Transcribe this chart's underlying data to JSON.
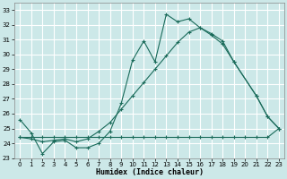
{
  "xlabel": "Humidex (Indice chaleur)",
  "bg_color": "#cce8e8",
  "grid_color": "#ffffff",
  "line_color": "#1a6b5a",
  "xlim": [
    -0.5,
    23.5
  ],
  "ylim": [
    23,
    33.5
  ],
  "yticks": [
    23,
    24,
    25,
    26,
    27,
    28,
    29,
    30,
    31,
    32,
    33
  ],
  "xticks": [
    0,
    1,
    2,
    3,
    4,
    5,
    6,
    7,
    8,
    9,
    10,
    11,
    12,
    13,
    14,
    15,
    16,
    17,
    18,
    19,
    20,
    21,
    22,
    23
  ],
  "curve1_x": [
    0,
    1,
    2,
    3,
    4,
    5,
    6,
    7,
    8,
    9,
    10,
    11,
    12,
    13,
    14,
    15,
    16,
    17,
    18,
    19,
    21,
    22,
    23
  ],
  "curve1_y": [
    25.6,
    24.7,
    23.3,
    24.1,
    24.2,
    23.7,
    23.7,
    24.0,
    24.8,
    26.7,
    29.6,
    30.9,
    29.5,
    32.7,
    32.2,
    32.4,
    31.8,
    31.4,
    30.9,
    29.5,
    27.2,
    25.8,
    25.0
  ],
  "curve2_x": [
    0,
    1,
    2,
    3,
    4,
    5,
    6,
    7,
    8,
    9,
    10,
    11,
    12,
    13,
    14,
    15,
    16,
    17,
    18,
    19,
    21,
    22,
    23
  ],
  "curve2_y": [
    24.4,
    24.3,
    24.1,
    24.2,
    24.3,
    24.1,
    24.3,
    24.8,
    25.4,
    26.3,
    27.2,
    28.1,
    29.0,
    29.9,
    30.8,
    31.5,
    31.8,
    31.3,
    30.7,
    29.5,
    27.2,
    25.8,
    25.0
  ],
  "curve3_x": [
    0,
    1,
    2,
    3,
    4,
    5,
    6,
    7,
    8,
    9,
    10,
    11,
    12,
    13,
    14,
    15,
    16,
    17,
    18,
    19,
    20,
    21,
    22,
    23
  ],
  "curve3_y": [
    24.4,
    24.4,
    24.4,
    24.4,
    24.4,
    24.4,
    24.4,
    24.4,
    24.4,
    24.4,
    24.4,
    24.4,
    24.4,
    24.4,
    24.4,
    24.4,
    24.4,
    24.4,
    24.4,
    24.4,
    24.4,
    24.4,
    24.4,
    25.0
  ]
}
